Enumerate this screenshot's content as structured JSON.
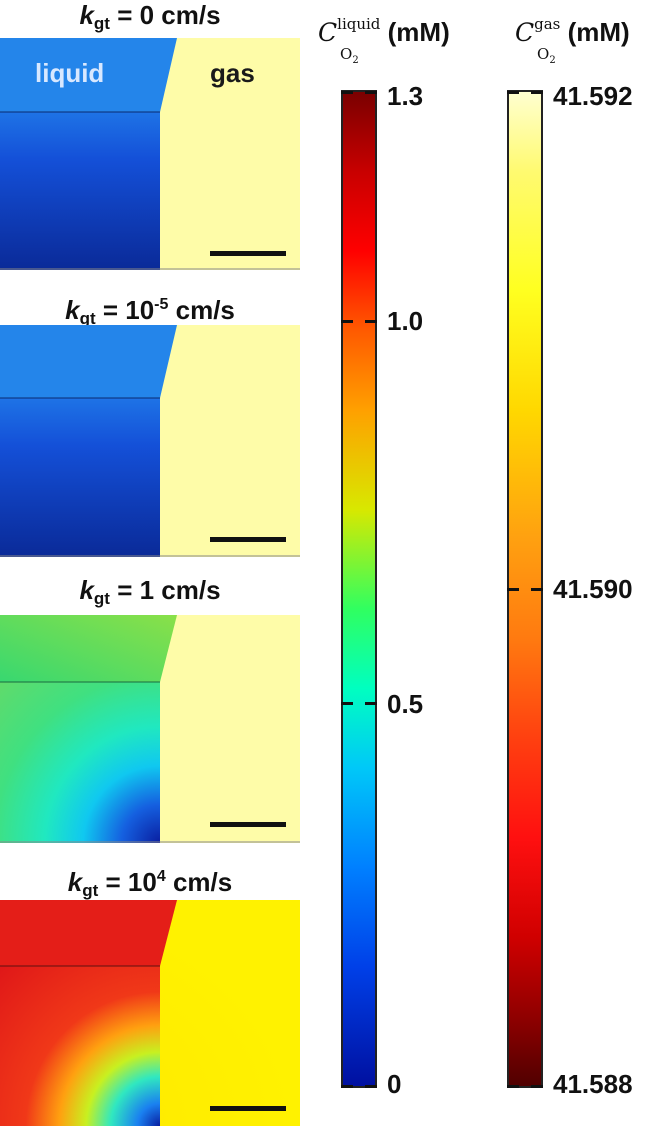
{
  "panels": [
    {
      "k_prefix": "k",
      "k_sub": "gt",
      "value_text": " = 0 cm/s",
      "sup": ""
    },
    {
      "k_prefix": "k",
      "k_sub": "gt",
      "value_text": " = 10",
      "sup": "-5",
      "unit": " cm/s"
    },
    {
      "k_prefix": "k",
      "k_sub": "gt",
      "value_text": " = 1 cm/s",
      "sup": ""
    },
    {
      "k_prefix": "k",
      "k_sub": "gt",
      "value_text": " = 10",
      "sup": "4",
      "unit": " cm/s"
    }
  ],
  "region_labels": {
    "liquid": "liquid",
    "gas": "gas"
  },
  "colorbars": {
    "liquid": {
      "symbol": "C",
      "superscript": "liquid",
      "subscript": "O",
      "subscript_index": "2",
      "unit": "(mM)",
      "min": 0,
      "max": 1.3,
      "ticks": [
        {
          "value": 1.3,
          "label": "1.3"
        },
        {
          "value": 1.0,
          "label": "1.0"
        },
        {
          "value": 0.5,
          "label": "0.5"
        },
        {
          "value": 0,
          "label": "0"
        }
      ],
      "colormap": "jet"
    },
    "gas": {
      "symbol": "C",
      "superscript": "gas",
      "subscript": "O",
      "subscript_index": "2",
      "unit": "(mM)",
      "min": 41.588,
      "max": 41.592,
      "ticks": [
        {
          "value": 41.592,
          "label": "41.592"
        },
        {
          "value": 41.59,
          "label": "41.590"
        },
        {
          "value": 41.588,
          "label": "41.588"
        }
      ],
      "colormap": "hot"
    }
  },
  "colors": {
    "gas_region": "#fefca8",
    "gas_region_saturated": "#ffec00"
  }
}
